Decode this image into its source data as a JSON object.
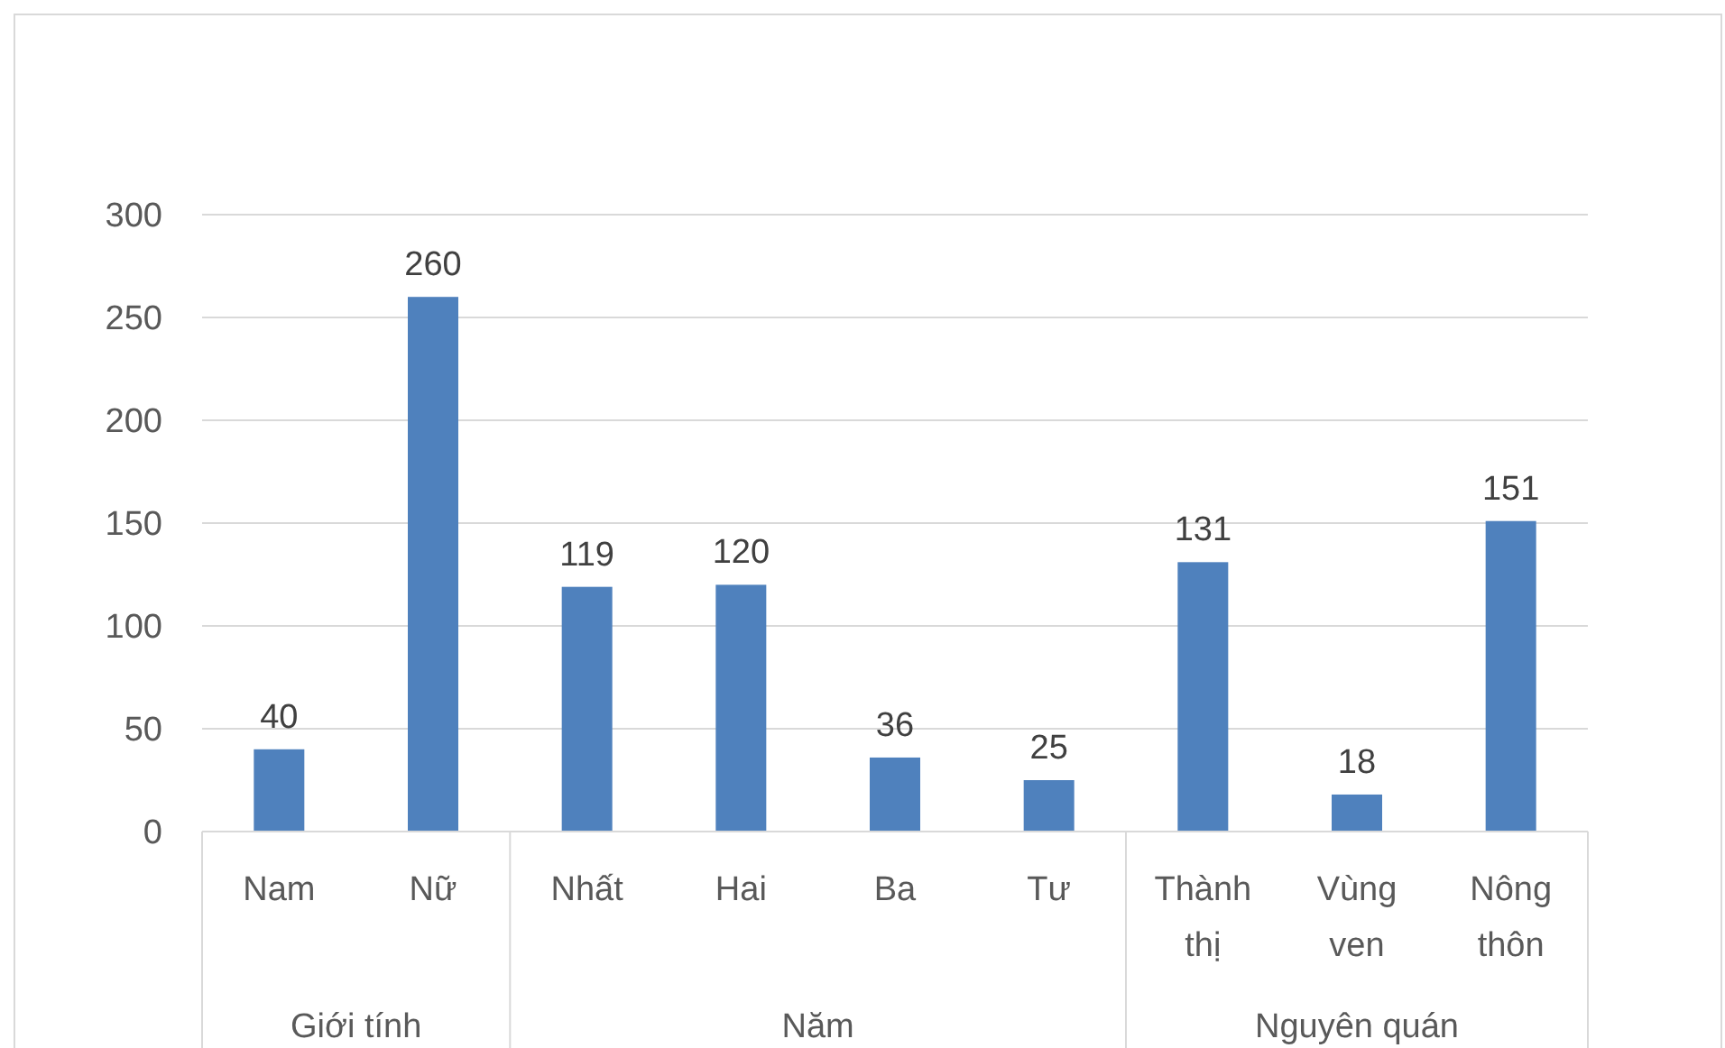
{
  "chart_data": {
    "type": "bar",
    "categories": [
      "Nam",
      "Nữ",
      "Nhất",
      "Hai",
      "Ba",
      "Tư",
      "Thành thị",
      "Vùng ven",
      "Nông thôn"
    ],
    "values": [
      40,
      260,
      119,
      120,
      36,
      25,
      131,
      18,
      151
    ],
    "color": "#4f81bd",
    "ylim": [
      0,
      300
    ],
    "yticks": [
      0,
      50,
      100,
      150,
      200,
      250,
      300
    ],
    "grid": "y",
    "data_labels": true,
    "annotations": [
      "Giới tính",
      "Năm",
      "Nguyên quán"
    ]
  }
}
